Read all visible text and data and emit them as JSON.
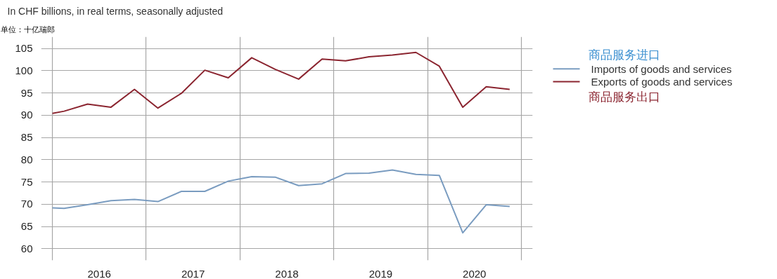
{
  "chart_data": {
    "type": "line",
    "title": "In CHF billions, in real terms, seasonally adjusted",
    "subtitle": "单位：十亿瑞郎",
    "x": [
      2016.0,
      2016.125,
      2016.375,
      2016.625,
      2016.875,
      2017.125,
      2017.375,
      2017.625,
      2017.875,
      2018.125,
      2018.375,
      2018.625,
      2018.875,
      2019.125,
      2019.375,
      2019.625,
      2019.875,
      2020.125,
      2020.375,
      2020.625,
      2020.875
    ],
    "series": [
      {
        "name": "Imports of goods and services",
        "color": "#7a9cc0",
        "values": [
          69.2,
          69.1,
          69.9,
          70.8,
          71.1,
          70.6,
          72.9,
          72.9,
          75.2,
          76.2,
          76.1,
          74.2,
          74.6,
          76.9,
          77.0,
          77.7,
          76.7,
          76.5,
          63.6,
          69.9,
          69.5
        ]
      },
      {
        "name": "Exports of goods and services",
        "color": "#8b2530",
        "values": [
          90.4,
          90.9,
          92.5,
          91.8,
          95.8,
          91.6,
          94.9,
          100.1,
          98.4,
          102.9,
          100.3,
          98.1,
          102.6,
          102.2,
          103.1,
          103.5,
          104.1,
          101.0,
          91.8,
          96.4,
          95.8
        ]
      }
    ],
    "annotations": [
      "商品服务进口",
      "商品服务出口"
    ],
    "xlim": [
      2015.88,
      2021.12
    ],
    "xticks": [
      {
        "value": 2016,
        "label": null
      },
      {
        "value": 2016.5,
        "label": "2016"
      },
      {
        "value": 2017,
        "label": null
      },
      {
        "value": 2017.5,
        "label": "2017"
      },
      {
        "value": 2018,
        "label": null
      },
      {
        "value": 2018.5,
        "label": "2018"
      },
      {
        "value": 2019,
        "label": null
      },
      {
        "value": 2019.5,
        "label": "2019"
      },
      {
        "value": 2020,
        "label": null
      },
      {
        "value": 2020.5,
        "label": "2020"
      },
      {
        "value": 2021,
        "label": null
      }
    ],
    "ylim": [
      57.4,
      107.6
    ],
    "yticks": [
      60,
      65,
      70,
      75,
      80,
      85,
      90,
      95,
      100,
      105
    ],
    "grid": true,
    "legend": "right",
    "marker": "none",
    "line_style": "solid"
  }
}
